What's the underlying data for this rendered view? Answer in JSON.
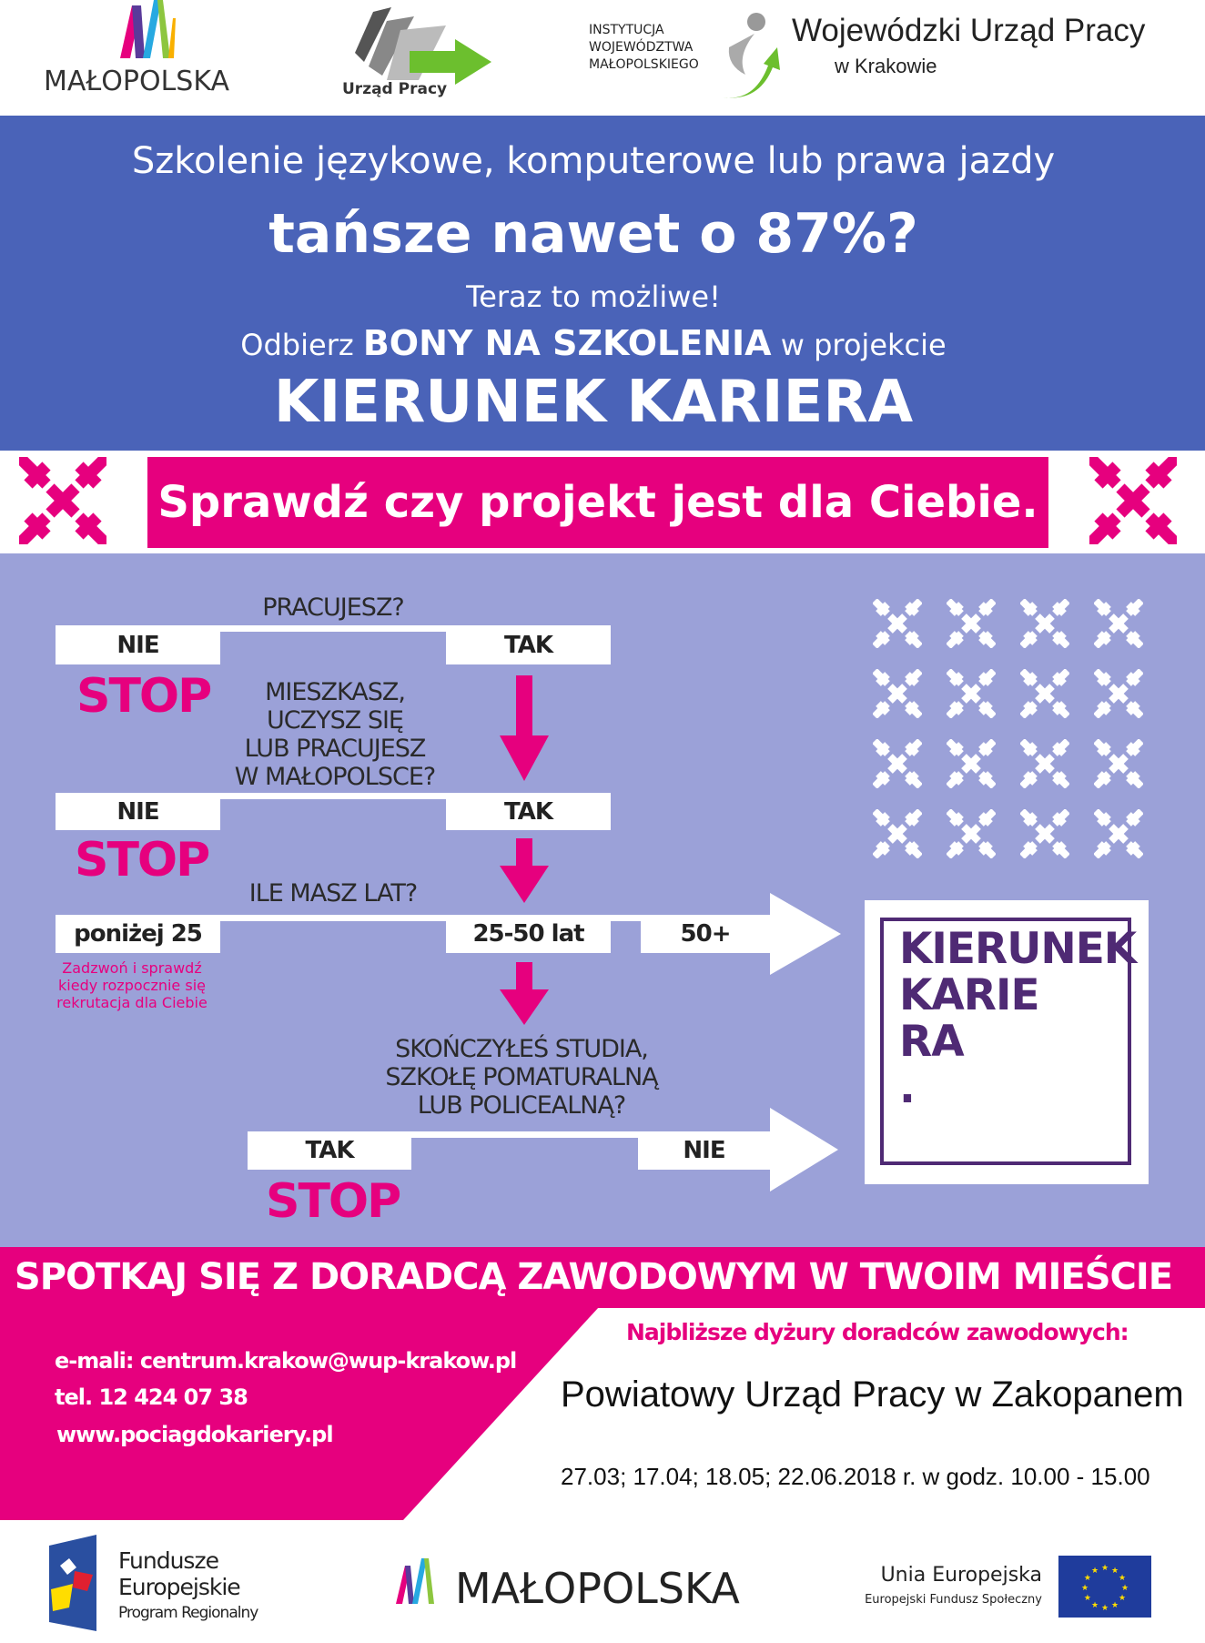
{
  "header": {
    "malopolska_logo": "MAŁOPOLSKA",
    "urzad_pracy_logo": "Urząd Pracy",
    "institution_lines": [
      "INSTYTUCJA",
      "WOJEWÓDZTWA",
      "MAŁOPOLSKIEGO"
    ],
    "wup_title": "Wojewódzki Urząd Pracy",
    "wup_subtitle": "w Krakowie"
  },
  "hero": {
    "line1": "Szkolenie językowe, komputerowe lub prawa jazdy",
    "line2": "tańsze nawet o 87%?",
    "line3": "Teraz to możliwe!",
    "line4_pre": "Odbierz ",
    "line4_bold": "BONY NA SZKOLENIA",
    "line4_post": " w projekcie",
    "project_name": "KIERUNEK KARIERA"
  },
  "check_banner": "Sprawdź czy projekt jest dla Ciebie.",
  "flow": {
    "q1": "PRACUJESZ?",
    "q2": [
      "MIESZKASZ,",
      "UCZYSZ SIĘ",
      "LUB PRACUJESZ",
      "W MAŁOPOLSCE?"
    ],
    "q3": "ILE MASZ LAT?",
    "q4": [
      "SKOŃCZYŁEŚ STUDIA,",
      "SZKOŁĘ POMATURALNĄ",
      "LUB POLICEALNĄ?"
    ],
    "no": "NIE",
    "yes": "TAK",
    "stop": "STOP",
    "age_under": "poniżej 25",
    "age_mid": "25-50 lat",
    "age_over": "50+",
    "under_note": [
      "Zadzwoń i sprawdź",
      "kiedy rozpocznie się",
      "rekrutacja dla Ciebie"
    ],
    "logo_lines": [
      "KIERUNEK",
      "KARIE",
      "RA",
      "."
    ]
  },
  "contact": {
    "heading": "SPOTKAJ SIĘ Z DORADCĄ ZAWODOWYM W TWOIM MIEŚCIE",
    "email": "e-mali: centrum.krakow@wup-krakow.pl",
    "phone": "tel. 12 424 07 38",
    "website": "www.pociagdokariery.pl",
    "duty_heading": "Najbliższe dyżury doradców zawodowych:",
    "office": "Powiatowy Urząd Pracy w Zakopanem",
    "dates": "27.03; 17.04; 18.05; 22.06.2018 r. w godz. 10.00 - 15.00"
  },
  "footer": {
    "fe_title1": "Fundusze",
    "fe_title2": "Europejskie",
    "fe_sub": "Program Regionalny",
    "malopolska": "MAŁOPOLSKA",
    "eu_title": "Unia Europejska",
    "eu_sub": "Europejski Fundusz Społeczny"
  },
  "colors": {
    "blue": "#4a63b8",
    "magenta": "#e6007e",
    "lavender": "#9ba1d8",
    "purple": "#4f2a74"
  }
}
